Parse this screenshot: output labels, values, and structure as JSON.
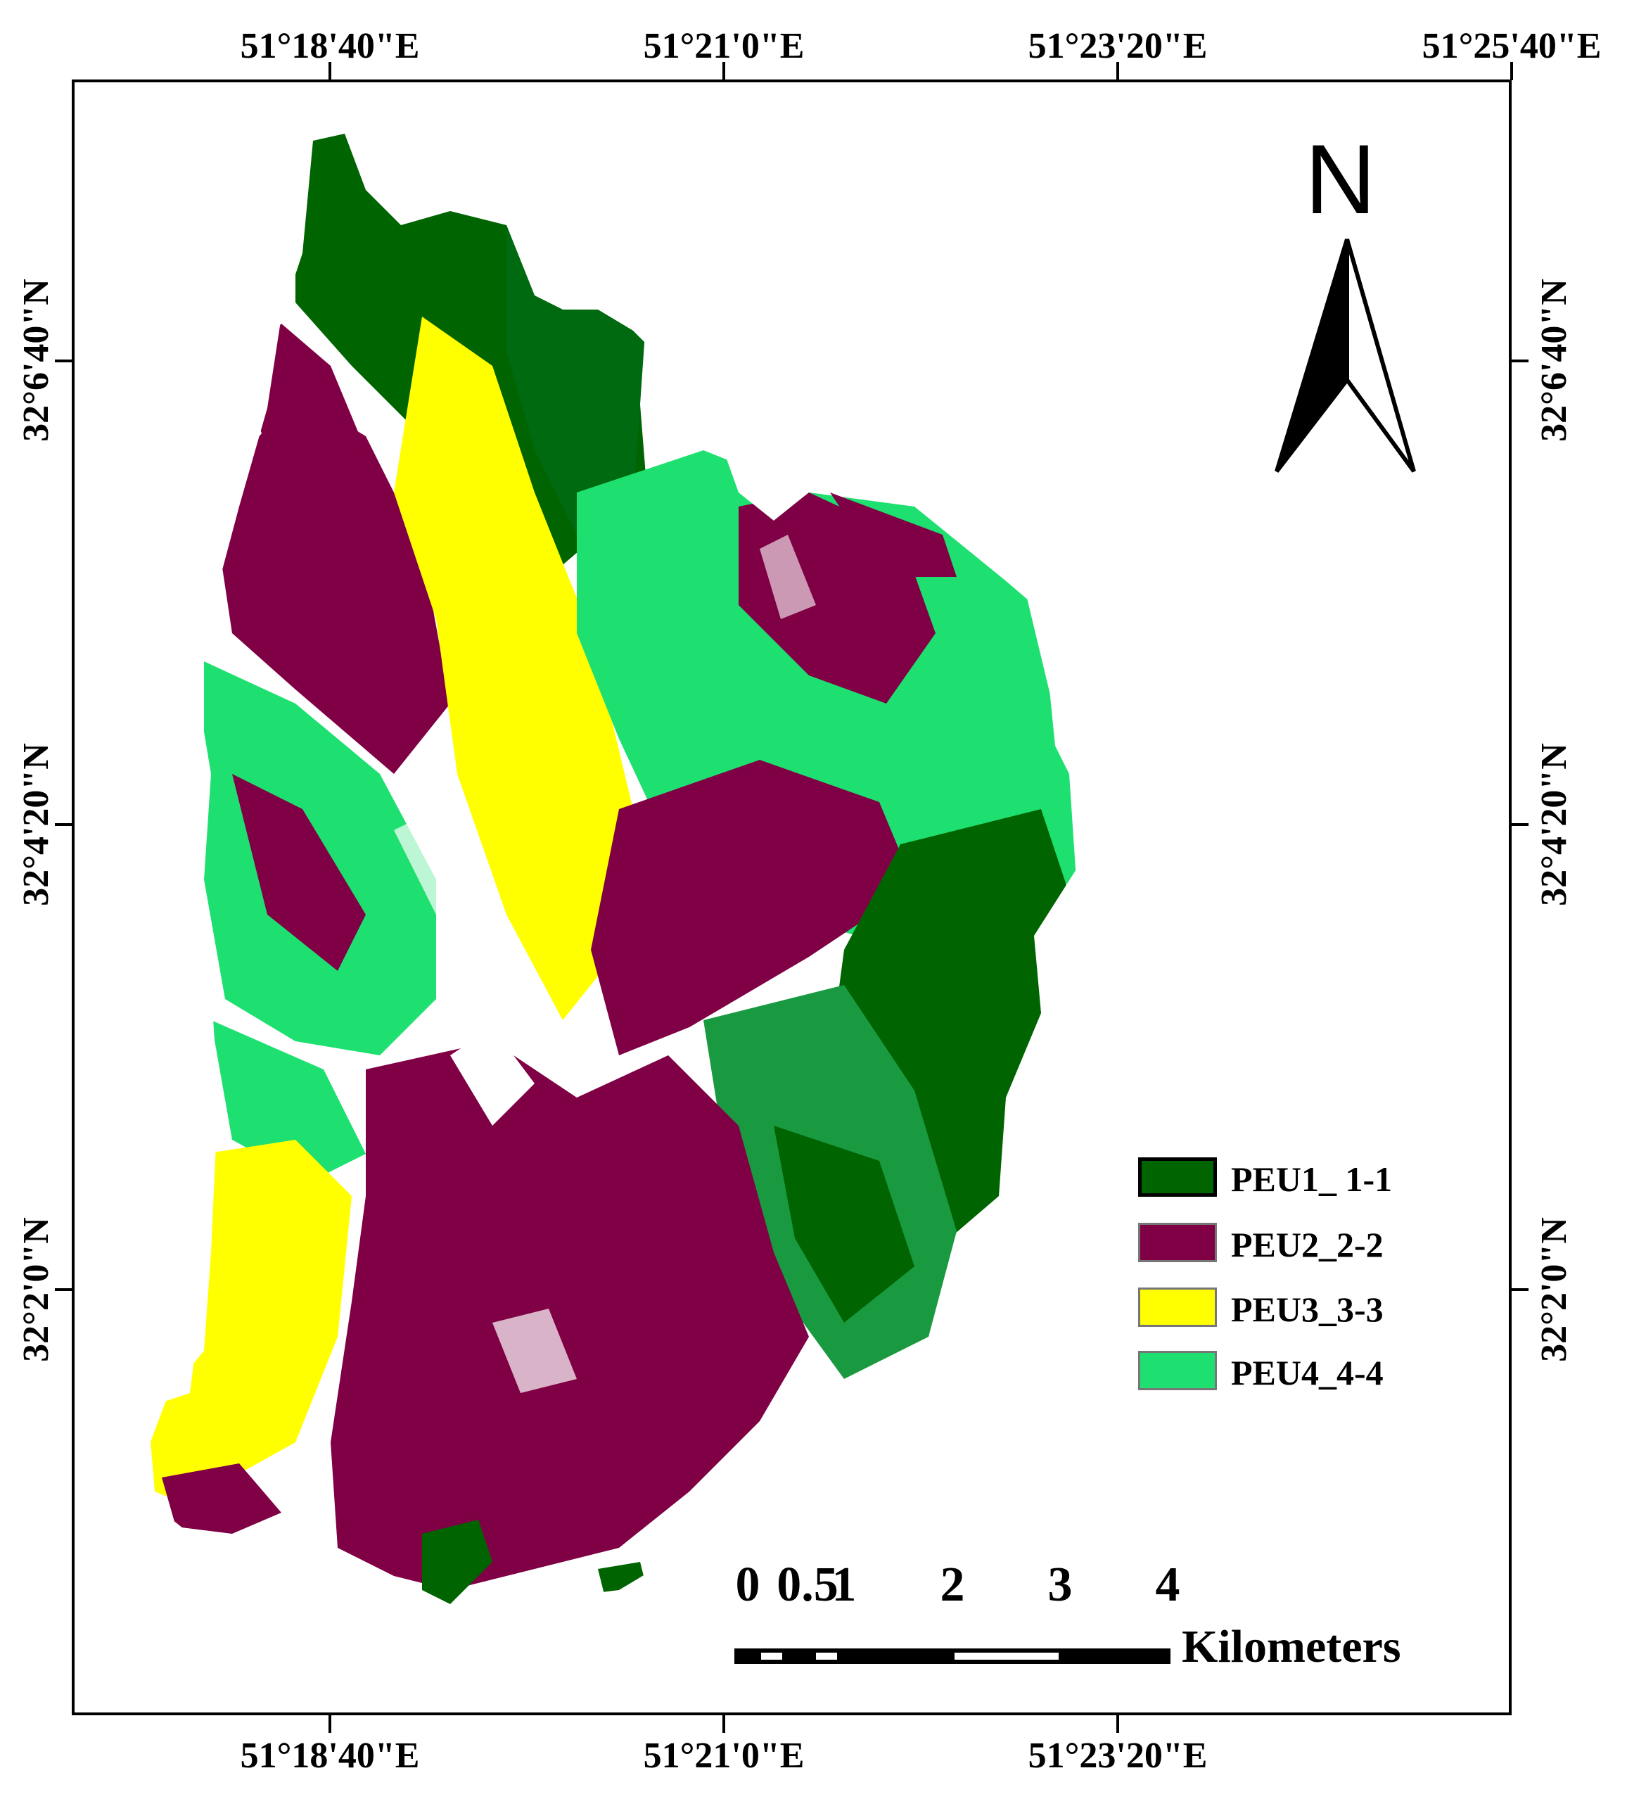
{
  "axes": {
    "top_labels": [
      "51°18'40\"E",
      "51°21'0\"E",
      "51°23'20\"E",
      "51°25'40\"E"
    ],
    "bottom_labels": [
      "51°18'40\"E",
      "51°21'0\"E",
      "51°23'20\"E"
    ],
    "left_labels": [
      "32°6'40\"N",
      "32°4'20\"N",
      "32°2'0\"N"
    ],
    "right_labels": [
      "32°6'40\"N",
      "32°4'20\"N",
      "32°2'0\"N"
    ]
  },
  "legend": {
    "items": [
      {
        "label": "PEU1_ 1-1",
        "color": "#006400"
      },
      {
        "label": "PEU2_2-2",
        "color": "#800045"
      },
      {
        "label": "PEU3_3-3",
        "color": "#ffff00"
      },
      {
        "label": "PEU4_4-4",
        "color": "#1ee070"
      }
    ]
  },
  "north_arrow": {
    "letter": "N"
  },
  "scale_bar": {
    "labels": [
      "0",
      "0.5",
      "1",
      "2",
      "3",
      "4"
    ],
    "unit": "Kilometers"
  },
  "map_layers": {
    "PEU1": "#006400",
    "PEU2": "#800045",
    "PEU3": "#ffff00",
    "PEU4": "#1ee070"
  }
}
